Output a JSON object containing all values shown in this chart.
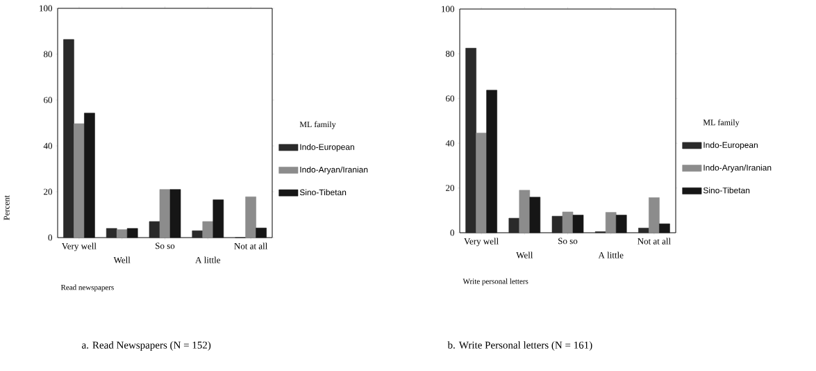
{
  "chart_data": [
    {
      "type": "bar",
      "categories": [
        "Very well",
        "Well",
        "So so",
        "A little",
        "Not at all"
      ],
      "xlabel": "Read newspapers",
      "ylabel": "Percent",
      "legend_title": "ML family",
      "legend": "right",
      "ylim": [
        0,
        100
      ],
      "yticks": [
        0,
        20,
        40,
        60,
        80,
        100
      ],
      "series": [
        {
          "name": "Indo-European",
          "color": "#2a2a2a",
          "values": [
            86.4,
            4,
            7,
            3,
            0
          ]
        },
        {
          "name": "Indo-Aryan/Iranian",
          "color": "#8c8c8c",
          "values": [
            49.7,
            3.5,
            21,
            7,
            17.8
          ]
        },
        {
          "name": "Sino-Tibetan",
          "color": "#161616",
          "values": [
            54.3,
            4,
            21,
            16.5,
            4.2
          ]
        }
      ],
      "annotations": [
        "a. Read Newspapers (N = 152)"
      ]
    },
    {
      "type": "bar",
      "categories": [
        "Very well",
        "Well",
        "So so",
        "A little",
        "Not at all"
      ],
      "xlabel": "Write personal letters",
      "legend_title": "ML family",
      "legend": "right",
      "ylim": [
        0,
        100
      ],
      "yticks": [
        0,
        20,
        40,
        60,
        80,
        100
      ],
      "series": [
        {
          "name": "Indo-European",
          "color": "#2a2a2a",
          "values": [
            82.5,
            6.5,
            7.4,
            0.5,
            2.1
          ]
        },
        {
          "name": "Indo-Aryan/Iranian",
          "color": "#8c8c8c",
          "values": [
            44.6,
            19,
            9.3,
            9.1,
            15.7
          ]
        },
        {
          "name": "Sino-Tibetan",
          "color": "#161616",
          "values": [
            63.7,
            15.9,
            7.9,
            7.9,
            4
          ]
        }
      ],
      "annotations": [
        "b. Write Personal letters  (N = 161)"
      ]
    }
  ]
}
